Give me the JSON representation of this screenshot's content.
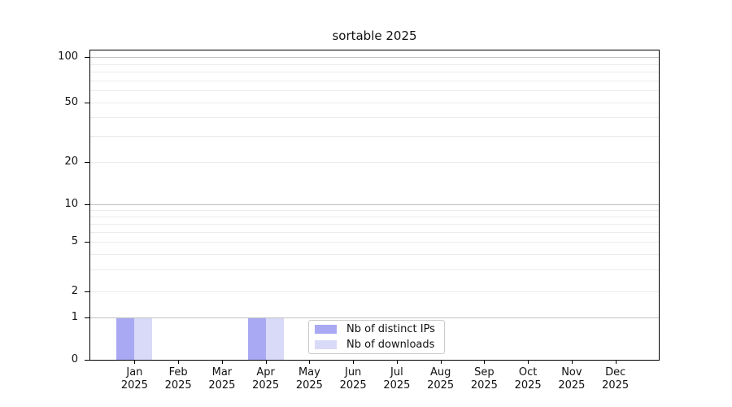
{
  "figure": {
    "background": "#ffffff"
  },
  "chart_data": {
    "type": "bar",
    "title": "sortable 2025",
    "categories": [
      "Jan",
      "Feb",
      "Mar",
      "Apr",
      "May",
      "Jun",
      "Jul",
      "Aug",
      "Sep",
      "Oct",
      "Nov",
      "Dec"
    ],
    "category_year": "2025",
    "series": [
      {
        "name": "Nb of distinct IPs",
        "color": "#a9a9f3",
        "values": [
          1,
          0,
          0,
          1,
          0,
          0,
          0,
          0,
          0,
          0,
          0,
          0
        ]
      },
      {
        "name": "Nb of downloads",
        "color": "#d9d9f8",
        "values": [
          1,
          0,
          0,
          1,
          0,
          0,
          0,
          0,
          0,
          0,
          0,
          0
        ]
      }
    ],
    "xlabel": "",
    "ylabel": "",
    "yscale": "symlog",
    "ylim": [
      0,
      110
    ],
    "yticks": [
      0,
      1,
      2,
      5,
      10,
      20,
      50,
      100
    ],
    "grid": {
      "on": true,
      "major_values": [
        1,
        10,
        100
      ],
      "minor_values": [
        2,
        3,
        4,
        5,
        6,
        7,
        8,
        9,
        20,
        30,
        40,
        50,
        60,
        70,
        80,
        90
      ],
      "major_color": "#c2c2c2",
      "minor_color": "#ebebeb"
    },
    "legend": {
      "position": "lower center",
      "entries": [
        "Nb of distinct IPs",
        "Nb of downloads"
      ]
    },
    "axis_color": "#000000"
  }
}
